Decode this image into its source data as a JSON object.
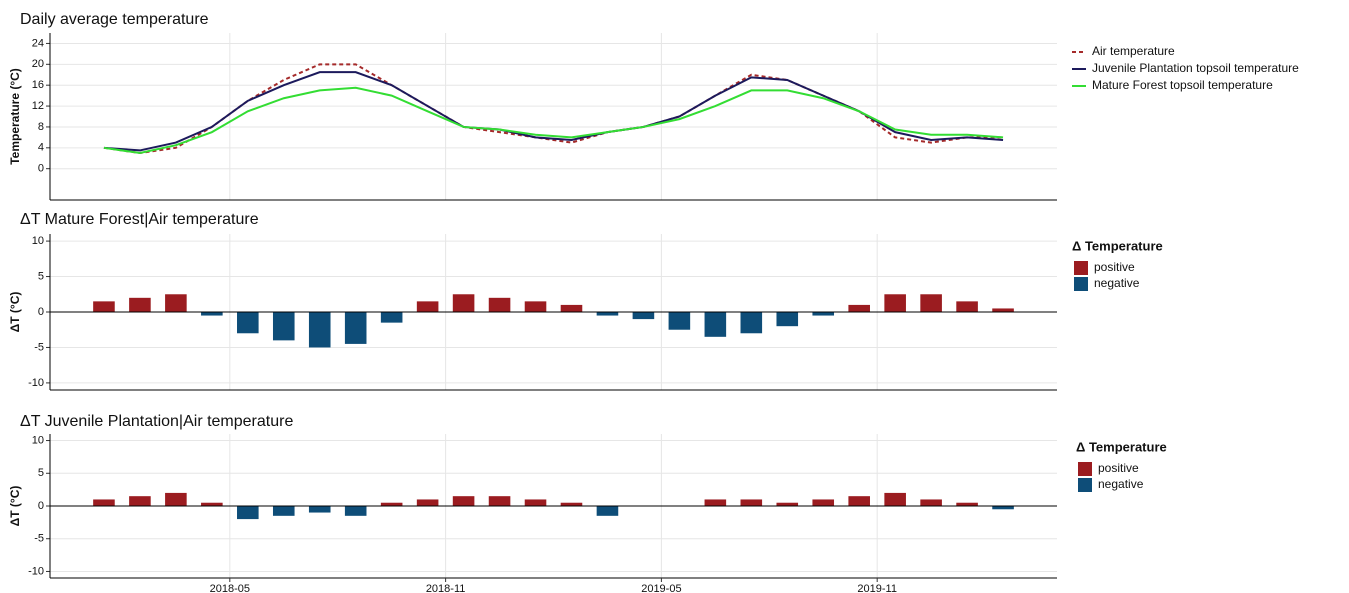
{
  "chart_data": [
    {
      "type": "line",
      "title": "Daily average temperature",
      "y_label": "Temperature (°C)",
      "x": [
        "2018-01",
        "2018-02",
        "2018-03",
        "2018-04",
        "2018-05",
        "2018-06",
        "2018-07",
        "2018-08",
        "2018-09",
        "2018-10",
        "2018-11",
        "2018-12",
        "2019-01",
        "2019-02",
        "2019-03",
        "2019-04",
        "2019-05",
        "2019-06",
        "2019-07",
        "2019-08",
        "2019-09",
        "2019-10",
        "2019-11",
        "2019-12",
        "2020-01",
        "2020-02"
      ],
      "series": [
        {
          "name": "Air temperature",
          "color": "#a52a2a",
          "line_style": "dashed",
          "values": [
            4,
            3,
            4,
            8,
            13,
            17,
            20,
            20,
            16,
            12,
            8,
            7,
            6,
            5,
            7,
            8,
            10,
            14,
            18,
            17,
            14,
            11,
            6,
            5,
            6,
            6
          ]
        },
        {
          "name": "Juvenile Plantation topsoil temperature",
          "color": "#1c1a5c",
          "line_style": "solid",
          "values": [
            4,
            3.5,
            5,
            8,
            13,
            16,
            18.5,
            18.5,
            16,
            12,
            8,
            7.5,
            6,
            5.5,
            7,
            8,
            10,
            14,
            17.5,
            17,
            14,
            11,
            7,
            5.5,
            6,
            5.5
          ]
        },
        {
          "name": "Mature Forest topsoil temperature",
          "color": "#33dd33",
          "line_style": "solid",
          "values": [
            4,
            3,
            4.5,
            7,
            11,
            13.5,
            15,
            15.5,
            14,
            11,
            8,
            7.5,
            6.5,
            6,
            7,
            8,
            9.5,
            12,
            15,
            15,
            13.5,
            11,
            7.5,
            6.5,
            6.5,
            6
          ]
        }
      ],
      "ylim": [
        -6,
        26
      ],
      "yticks": [
        0,
        4,
        8,
        12,
        16,
        20,
        24
      ],
      "grid": true,
      "legend": "right"
    },
    {
      "type": "bar",
      "title": "ΔT Mature Forest|Air temperature",
      "y_label": "ΔT (°C)",
      "legend_title": "Δ Temperature",
      "legend_entries": [
        {
          "name": "positive",
          "color": "#9b1c20"
        },
        {
          "name": "negative",
          "color": "#0e4d78"
        }
      ],
      "x": [
        "2018-01",
        "2018-02",
        "2018-03",
        "2018-04",
        "2018-05",
        "2018-06",
        "2018-07",
        "2018-08",
        "2018-09",
        "2018-10",
        "2018-11",
        "2018-12",
        "2019-01",
        "2019-02",
        "2019-03",
        "2019-04",
        "2019-05",
        "2019-06",
        "2019-07",
        "2019-08",
        "2019-09",
        "2019-10",
        "2019-11",
        "2019-12",
        "2020-01",
        "2020-02"
      ],
      "values": [
        1.5,
        2,
        2.5,
        -0.5,
        -3,
        -4,
        -5,
        -4.5,
        -1.5,
        1.5,
        2.5,
        2,
        1.5,
        1,
        -0.5,
        -1,
        -2.5,
        -3.5,
        -3,
        -2,
        -0.5,
        1,
        2.5,
        2.5,
        1.5,
        0.5
      ],
      "ylim": [
        -11,
        11
      ],
      "yticks": [
        -10,
        -5,
        0,
        5,
        10
      ],
      "grid": true,
      "legend": "right"
    },
    {
      "type": "bar",
      "title": "ΔT Juvenile Plantation|Air temperature",
      "y_label": "ΔT (°C)",
      "legend_title": "Δ Temperature",
      "legend_entries": [
        {
          "name": "positive",
          "color": "#9b1c20"
        },
        {
          "name": "negative",
          "color": "#0e4d78"
        }
      ],
      "x": [
        "2018-01",
        "2018-02",
        "2018-03",
        "2018-04",
        "2018-05",
        "2018-06",
        "2018-07",
        "2018-08",
        "2018-09",
        "2018-10",
        "2018-11",
        "2018-12",
        "2019-01",
        "2019-02",
        "2019-03",
        "2019-04",
        "2019-05",
        "2019-06",
        "2019-07",
        "2019-08",
        "2019-09",
        "2019-10",
        "2019-11",
        "2019-12",
        "2020-01",
        "2020-02"
      ],
      "values": [
        1,
        1.5,
        2,
        0.5,
        -2,
        -1.5,
        -1,
        -1.5,
        0.5,
        1,
        1.5,
        1.5,
        1,
        0.5,
        -1.5,
        null,
        null,
        1,
        1,
        0.5,
        1,
        1.5,
        2,
        1,
        0.5,
        -0.5
      ],
      "ylim": [
        -11,
        11
      ],
      "yticks": [
        -10,
        -5,
        0,
        5,
        10
      ],
      "grid": true,
      "legend": "right",
      "xlim": [
        "2017-12",
        "2020-04"
      ],
      "xticks": [
        "2018-05",
        "2018-11",
        "2019-05",
        "2019-11"
      ]
    }
  ]
}
